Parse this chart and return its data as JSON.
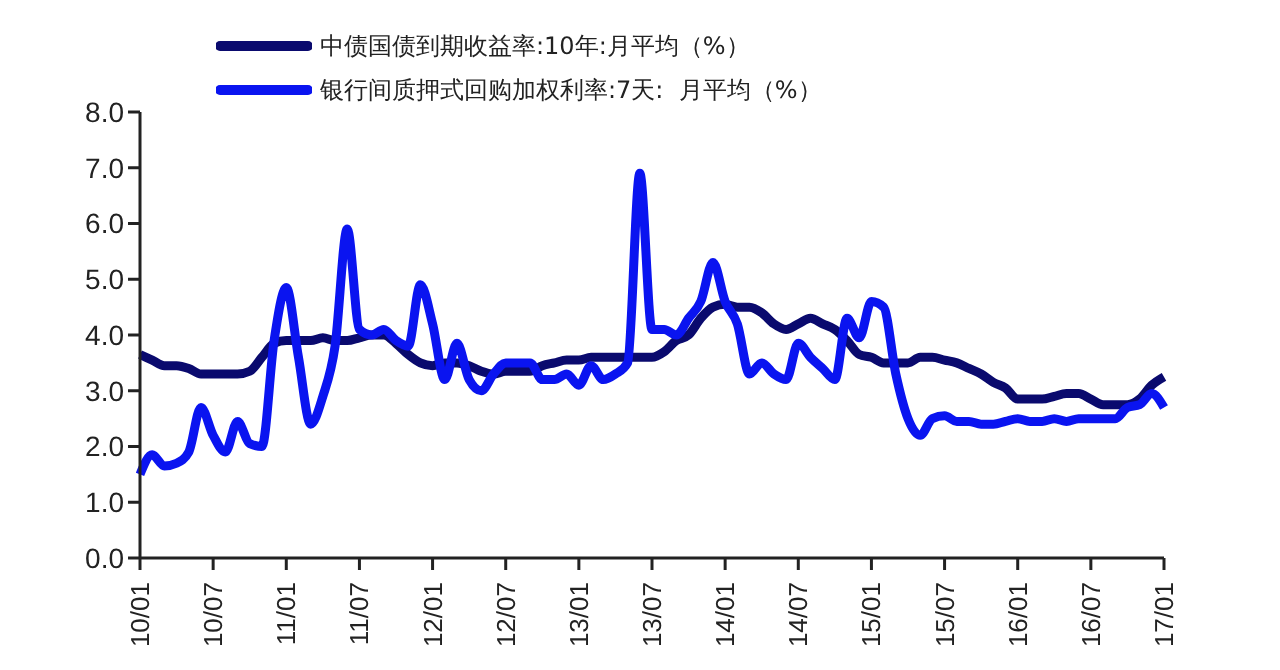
{
  "chart_data": {
    "type": "line",
    "categories": [
      "10/01",
      null,
      null,
      null,
      null,
      null,
      "10/07",
      null,
      null,
      null,
      null,
      null,
      "11/01",
      null,
      null,
      null,
      null,
      null,
      "11/07",
      null,
      null,
      null,
      null,
      null,
      "12/01",
      null,
      null,
      null,
      null,
      null,
      "12/07",
      null,
      null,
      null,
      null,
      null,
      "13/01",
      null,
      null,
      null,
      null,
      null,
      "13/07",
      null,
      null,
      null,
      null,
      null,
      "14/01",
      null,
      null,
      null,
      null,
      null,
      "14/07",
      null,
      null,
      null,
      null,
      null,
      "15/01",
      null,
      null,
      null,
      null,
      null,
      "15/07",
      null,
      null,
      null,
      null,
      null,
      "16/01",
      null,
      null,
      null,
      null,
      null,
      "16/07",
      null,
      null,
      null,
      null,
      null,
      "17/01"
    ],
    "series": [
      {
        "name": "中债国债到期收益率:10年:月平均（%）",
        "color": "#0a0a6e",
        "values": [
          3.65,
          3.55,
          3.45,
          3.45,
          3.4,
          3.3,
          3.3,
          3.3,
          3.3,
          3.35,
          3.6,
          3.85,
          3.9,
          3.9,
          3.9,
          3.95,
          3.9,
          3.9,
          3.95,
          4.0,
          4.0,
          3.85,
          3.65,
          3.5,
          3.45,
          3.5,
          3.5,
          3.45,
          3.35,
          3.3,
          3.35,
          3.35,
          3.35,
          3.45,
          3.5,
          3.55,
          3.55,
          3.6,
          3.6,
          3.6,
          3.6,
          3.6,
          3.6,
          3.7,
          3.9,
          4.0,
          4.3,
          4.5,
          4.55,
          4.5,
          4.5,
          4.4,
          4.2,
          4.1,
          4.2,
          4.3,
          4.2,
          4.1,
          3.9,
          3.65,
          3.6,
          3.5,
          3.5,
          3.5,
          3.6,
          3.6,
          3.55,
          3.5,
          3.4,
          3.3,
          3.15,
          3.05,
          2.85,
          2.85,
          2.85,
          2.9,
          2.95,
          2.95,
          2.85,
          2.75,
          2.75,
          2.75,
          2.85,
          3.1,
          3.25
        ]
      },
      {
        "name": "银行间质押式回购加权利率:7天:  月平均（%）",
        "color": "#0a14f0",
        "values": [
          1.5,
          1.85,
          1.65,
          1.7,
          1.9,
          2.7,
          2.2,
          1.9,
          2.45,
          2.05,
          2.0,
          3.9,
          4.85,
          3.6,
          2.4,
          2.9,
          3.8,
          5.9,
          4.1,
          4.0,
          4.1,
          3.9,
          3.8,
          4.9,
          4.2,
          3.2,
          3.85,
          3.2,
          3.0,
          3.3,
          3.5,
          3.5,
          3.5,
          3.2,
          3.2,
          3.3,
          3.1,
          3.45,
          3.2,
          3.3,
          3.5,
          6.9,
          4.1,
          4.1,
          4.0,
          4.3,
          4.6,
          5.3,
          4.6,
          4.2,
          3.3,
          3.5,
          3.3,
          3.2,
          3.85,
          3.6,
          3.4,
          3.2,
          4.3,
          3.95,
          4.6,
          4.5,
          3.3,
          2.5,
          2.2,
          2.5,
          2.55,
          2.45,
          2.45,
          2.4,
          2.4,
          2.45,
          2.5,
          2.45,
          2.45,
          2.5,
          2.45,
          2.5,
          2.5,
          2.5,
          2.5,
          2.7,
          2.75,
          2.95,
          2.7
        ]
      }
    ],
    "ylim": [
      0,
      8
    ],
    "yticks": [
      {
        "value": 0,
        "label": "0.0"
      },
      {
        "value": 1,
        "label": "1.0"
      },
      {
        "value": 2,
        "label": "2.0"
      },
      {
        "value": 3,
        "label": "3.0"
      },
      {
        "value": 4,
        "label": "4.0"
      },
      {
        "value": 5,
        "label": "5.0"
      },
      {
        "value": 6,
        "label": "6.0"
      },
      {
        "value": 7,
        "label": "7.0"
      },
      {
        "value": 8,
        "label": "8.0"
      }
    ],
    "grid": false,
    "legend": "top",
    "marker": "none",
    "line_style": "solid"
  }
}
